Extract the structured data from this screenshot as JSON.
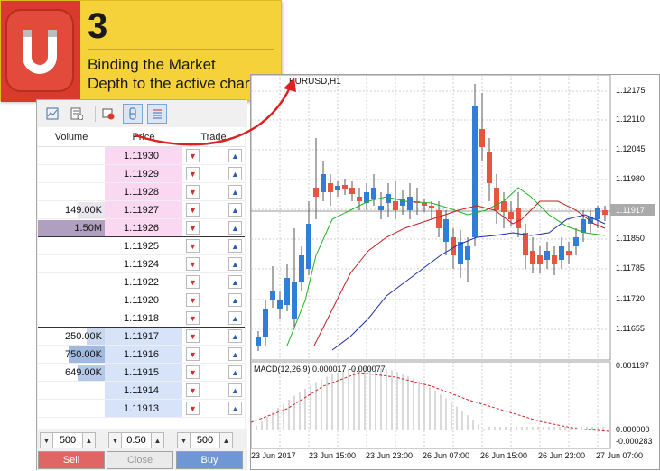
{
  "banner": {
    "step": "3",
    "line1": "Binding the Market",
    "line2": "Depth to the active chart"
  },
  "toolbar": {
    "icons": [
      "chart-icon",
      "history-icon",
      "bind-chart-icon",
      "level-icon",
      "list-icon"
    ]
  },
  "dom": {
    "headers": {
      "volume": "Volume",
      "price": "Price",
      "trade": "Trade"
    },
    "asks": [
      {
        "volume": "",
        "price": "1.11930"
      },
      {
        "volume": "",
        "price": "1.11929"
      },
      {
        "volume": "",
        "price": "1.11928"
      },
      {
        "volume": "149.00K",
        "price": "1.11927"
      },
      {
        "volume": "1.50M",
        "price": "1.11926"
      }
    ],
    "mids": [
      {
        "volume": "",
        "price": "1.11925"
      },
      {
        "volume": "",
        "price": "1.11924"
      },
      {
        "volume": "",
        "price": "1.11922"
      },
      {
        "volume": "",
        "price": "1.11920"
      },
      {
        "volume": "",
        "price": "1.11918"
      }
    ],
    "bids": [
      {
        "volume": "250.00K",
        "price": "1.11917"
      },
      {
        "volume": "750.00K",
        "price": "1.11916"
      },
      {
        "volume": "649.00K",
        "price": "1.11915"
      },
      {
        "volume": "",
        "price": "1.11914"
      },
      {
        "volume": "",
        "price": "1.11913"
      }
    ],
    "spin_left": "500",
    "spin_mid": "0.50",
    "spin_right": "500",
    "sell": "Sell",
    "close": "Close",
    "buy": "Buy"
  },
  "chart": {
    "title": "EURUSD,H1",
    "macd_label": "MACD(12,26,9) 0.000017 -0.000077",
    "price_tag": "1.11917",
    "y_labels": [
      "1.12175",
      "1.12110",
      "1.12045",
      "1.11980",
      "1.11850",
      "1.11785",
      "1.11720",
      "1.11655"
    ],
    "macd_labels": [
      "0.001197",
      "0.000000",
      "-0.000283"
    ],
    "x_labels": [
      "23 Jun 2017",
      "23 Jun 15:00",
      "23 Jun 23:00",
      "26 Jun 07:00",
      "26 Jun 15:00",
      "26 Jun 23:00",
      "27 Jun 07:00"
    ]
  },
  "colors": {
    "banner": "#f6d23a",
    "logo": "#d83a2b",
    "bull": "#2f7fd9",
    "bear": "#e8553f",
    "ask_bg": "#fbd8f2",
    "bid_bg": "#d6e3f8"
  }
}
